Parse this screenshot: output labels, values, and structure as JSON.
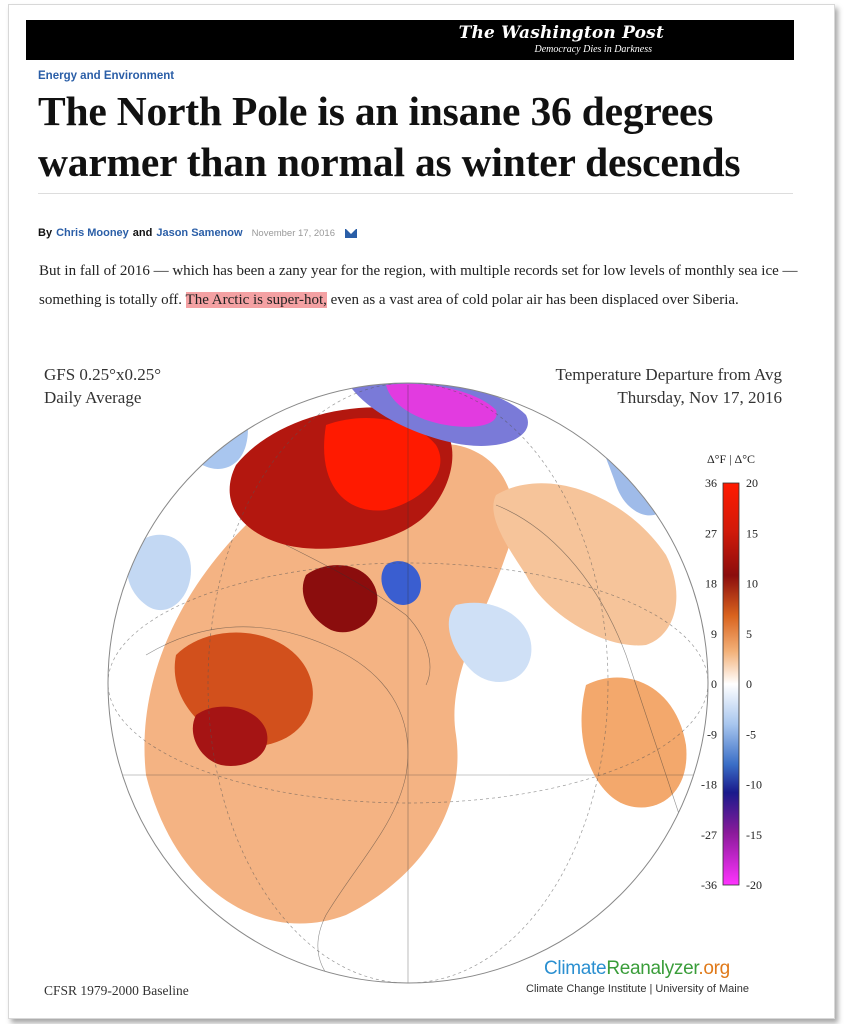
{
  "masthead": {
    "logo": "The Washington Post",
    "tagline": "Democracy Dies in Darkness"
  },
  "article": {
    "section": "Energy and Environment",
    "headline": "The North Pole is an insane 36 degrees warmer than normal as winter descends",
    "byline_prefix": "By",
    "author1": "Chris Mooney",
    "and": "and",
    "author2": "Jason Samenow",
    "date": "November 17, 2016",
    "body_before": "But in fall of 2016 — which has been a zany year for the region, with multiple records set for low levels of monthly sea ice — something is totally off.",
    "body_highlight": "The Arctic is super-hot,",
    "body_after": "even as a vast area of cold polar air has been displaced over Siberia."
  },
  "figure": {
    "model_line1": "GFS 0.25°x0.25°",
    "model_line2": "Daily Average",
    "title_line1": "Temperature Departure from Avg",
    "title_line2": "Thursday, Nov 17, 2016",
    "baseline": "CFSR 1979-2000 Baseline",
    "credit_part1": "Climate",
    "credit_part2": "Reanalyzer",
    "credit_part3": ".org",
    "credit_sub": "Climate Change Institute | University of Maine",
    "colorbar_header": "Δ°F | Δ°C",
    "colorbar_f": [
      "36",
      "27",
      "18",
      "9",
      "0",
      "-9",
      "-18",
      "-27",
      "-36"
    ],
    "colorbar_c": [
      "20",
      "15",
      "10",
      "5",
      "0",
      "-5",
      "-10",
      "-15",
      "-20"
    ],
    "colors": {
      "hot_max": "#ff1a00",
      "hot_dark": "#8b0d0d",
      "warm": "#e8762a",
      "neutral": "#ffffff",
      "cool": "#5b8fd6",
      "cold_dark": "#1a1a8c",
      "cold_max": "#ff33ff"
    }
  }
}
